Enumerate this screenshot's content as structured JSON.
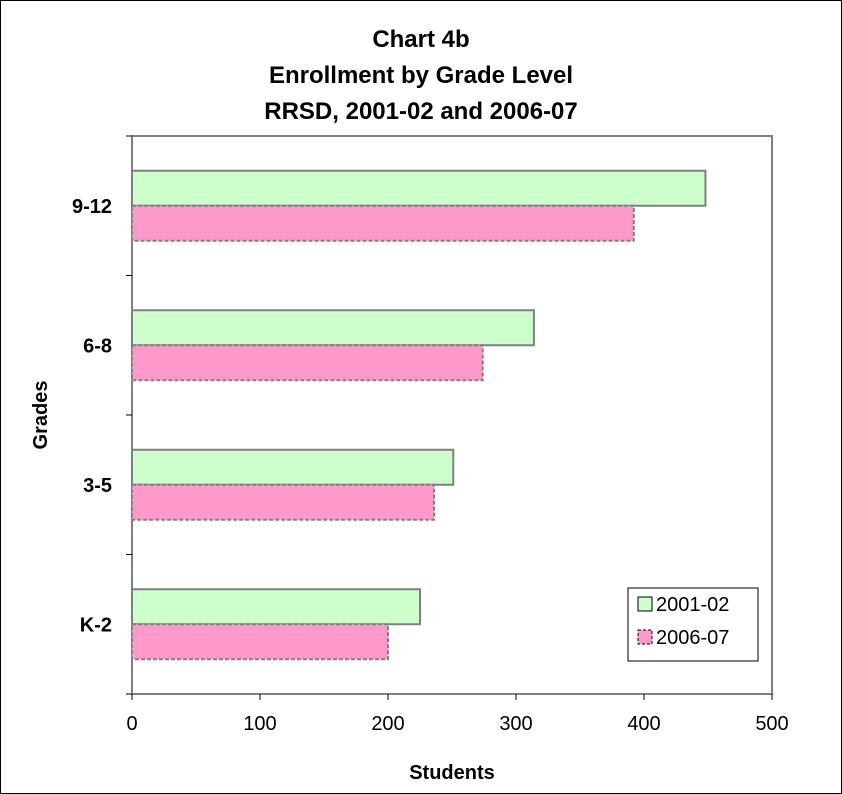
{
  "chart_data": {
    "type": "bar",
    "orientation": "horizontal",
    "title_lines": [
      "Chart 4b",
      "Enrollment by Grade Level",
      "RRSD, 2001-02 and 2006-07"
    ],
    "xlabel": "Students",
    "ylabel": "Grades",
    "categories": [
      "9-12",
      "6-8",
      "3-5",
      "K-2"
    ],
    "series": [
      {
        "name": "2001-02",
        "values": [
          448,
          314,
          251,
          225
        ],
        "color": "#ccffcc",
        "stroke": "#808080"
      },
      {
        "name": "2006-07",
        "values": [
          392,
          274,
          236,
          200
        ],
        "color": "#ff99cc",
        "stroke": "#808080"
      }
    ],
    "xlim": [
      0,
      500
    ],
    "xticks": [
      "0",
      "100",
      "200",
      "300",
      "400",
      "500"
    ],
    "grid": false,
    "legend_position": "bottom-right"
  }
}
